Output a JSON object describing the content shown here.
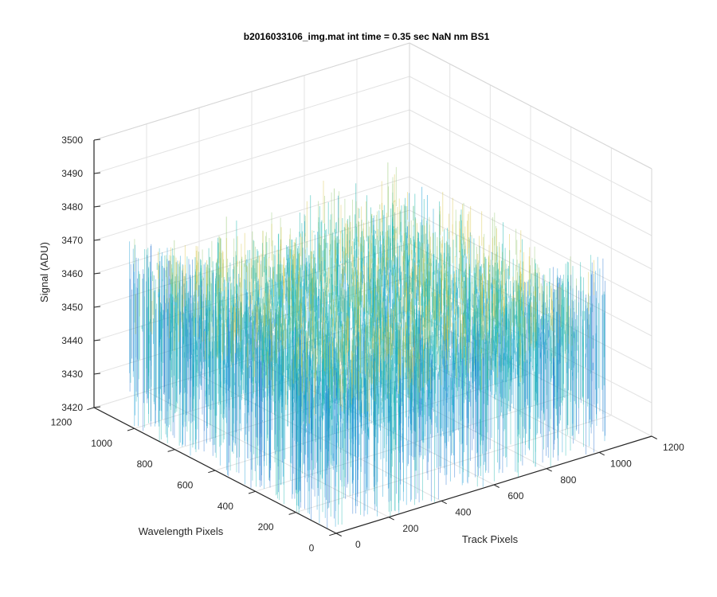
{
  "figure": {
    "title": "b2016033106_img.mat int time = 0.35 sec  NaN nm BS1"
  },
  "chart_data": {
    "type": "surface",
    "title": "b2016033106_img.mat int time = 0.35 sec  NaN nm BS1",
    "xlabel": "Track Pixels",
    "ylabel": "Wavelength Pixels",
    "zlabel": "Signal (ADU)",
    "xlim": [
      0,
      1200
    ],
    "ylim": [
      0,
      1200
    ],
    "zlim": [
      3420,
      3500
    ],
    "x_ticks": [
      "0",
      "200",
      "400",
      "600",
      "800",
      "1000",
      "1200"
    ],
    "y_ticks": [
      "0",
      "200",
      "400",
      "600",
      "800",
      "1000",
      "1200"
    ],
    "z_ticks": [
      "3420",
      "3430",
      "3440",
      "3450",
      "3460",
      "3470",
      "3480",
      "3490",
      "3500"
    ],
    "grid": true,
    "data_extent": {
      "x": [
        0,
        1024
      ],
      "y": [
        0,
        1024
      ]
    },
    "signal_mean": 3452,
    "signal_range": [
      3420,
      3497
    ],
    "colormap": [
      "#1f6fd0",
      "#1a9fd6",
      "#21b8b0",
      "#8fc56a",
      "#d8c23a"
    ]
  }
}
